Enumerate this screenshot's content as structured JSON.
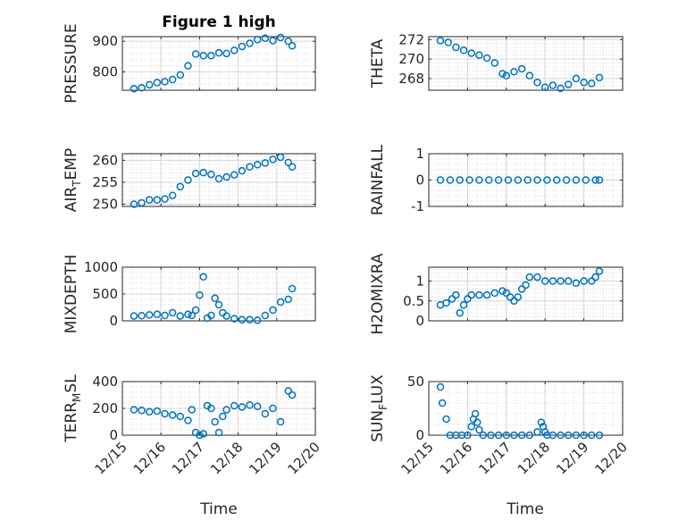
{
  "figure_title": "Figure 1 high",
  "x_ticks": [
    "12/15",
    "12/16",
    "12/17",
    "12/18",
    "12/19",
    "12/20"
  ],
  "x_label": "Time",
  "marker_color": "#0072BD",
  "chart_data": [
    {
      "type": "scatter",
      "name": "pressure",
      "ylabel": "PRESSURE",
      "title": "Figure 1 high",
      "ylim": [
        740,
        915
      ],
      "yticks": [
        "800",
        "900"
      ],
      "ytick_values": [
        800,
        900
      ],
      "x": [
        0.3,
        0.5,
        0.7,
        0.9,
        1.1,
        1.3,
        1.5,
        1.7,
        1.9,
        2.1,
        2.3,
        2.5,
        2.7,
        2.9,
        3.1,
        3.3,
        3.5,
        3.7,
        3.9,
        4.1,
        4.3,
        4.4
      ],
      "y": [
        745,
        748,
        758,
        765,
        768,
        775,
        790,
        820,
        858,
        853,
        853,
        862,
        860,
        870,
        883,
        893,
        905,
        910,
        902,
        912,
        900,
        885
      ]
    },
    {
      "type": "scatter",
      "name": "theta",
      "ylabel": "THETA",
      "ylim": [
        266.8,
        272.3
      ],
      "yticks": [
        "268",
        "270",
        "272"
      ],
      "ytick_values": [
        268,
        270,
        272
      ],
      "x": [
        0.3,
        0.5,
        0.7,
        0.9,
        1.1,
        1.3,
        1.5,
        1.7,
        1.9,
        2.0,
        2.2,
        2.4,
        2.6,
        2.8,
        3.0,
        3.2,
        3.4,
        3.6,
        3.8,
        4.0,
        4.2,
        4.4
      ],
      "y": [
        271.9,
        271.7,
        271.2,
        270.9,
        270.6,
        270.4,
        270.1,
        269.6,
        268.5,
        268.3,
        268.7,
        269.0,
        268.3,
        267.6,
        267.1,
        267.3,
        267.0,
        267.4,
        268.0,
        267.6,
        267.5,
        268.1
      ]
    },
    {
      "type": "scatter",
      "name": "air_temp",
      "ylabel": "AIR_TEMP",
      "ylim": [
        249.5,
        261.5
      ],
      "yticks": [
        "250",
        "255",
        "260"
      ],
      "ytick_values": [
        250,
        255,
        260
      ],
      "x": [
        0.3,
        0.5,
        0.7,
        0.9,
        1.1,
        1.3,
        1.5,
        1.7,
        1.9,
        2.1,
        2.3,
        2.5,
        2.7,
        2.9,
        3.1,
        3.3,
        3.5,
        3.7,
        3.9,
        4.1,
        4.3,
        4.4
      ],
      "y": [
        250.0,
        250.3,
        251.0,
        251.0,
        251.2,
        252.0,
        254.0,
        255.5,
        257.0,
        257.2,
        256.8,
        255.8,
        256.2,
        256.7,
        257.6,
        258.5,
        259.0,
        259.4,
        260.2,
        260.7,
        259.5,
        258.5
      ]
    },
    {
      "type": "scatter",
      "name": "rainfall",
      "ylabel": "RAINFALL",
      "ylim": [
        -1,
        1
      ],
      "yticks": [
        "-1",
        "0",
        "1"
      ],
      "ytick_values": [
        -1,
        0,
        1
      ],
      "x": [
        0.3,
        0.55,
        0.8,
        1.05,
        1.3,
        1.55,
        1.8,
        2.05,
        2.3,
        2.55,
        2.8,
        3.05,
        3.3,
        3.55,
        3.8,
        4.05,
        4.3,
        4.4
      ],
      "y": [
        0,
        0,
        0,
        0,
        0,
        0,
        0,
        0,
        0,
        0,
        0,
        0,
        0,
        0,
        0,
        0,
        0,
        0
      ]
    },
    {
      "type": "scatter",
      "name": "mixdepth",
      "ylabel": "MIXDEPTH",
      "ylim": [
        0,
        1000
      ],
      "yticks": [
        "0",
        "500",
        "1000"
      ],
      "ytick_values": [
        0,
        500,
        1000
      ],
      "x": [
        0.3,
        0.5,
        0.7,
        0.9,
        1.1,
        1.3,
        1.5,
        1.7,
        1.8,
        1.9,
        2.0,
        2.1,
        2.2,
        2.3,
        2.4,
        2.5,
        2.6,
        2.7,
        2.9,
        3.1,
        3.3,
        3.5,
        3.7,
        3.9,
        4.1,
        4.3,
        4.4
      ],
      "y": [
        90,
        95,
        110,
        120,
        100,
        150,
        90,
        120,
        100,
        200,
        480,
        820,
        50,
        100,
        420,
        300,
        150,
        90,
        40,
        20,
        20,
        10,
        100,
        200,
        350,
        400,
        600
      ]
    },
    {
      "type": "scatter",
      "name": "h2omixra",
      "ylabel": "H2OMIXRA",
      "ylim": [
        0,
        1.35
      ],
      "yticks": [
        "0",
        "0.5",
        "1"
      ],
      "ytick_values": [
        0,
        0.5,
        1
      ],
      "x": [
        0.3,
        0.45,
        0.6,
        0.7,
        0.8,
        0.9,
        1.0,
        1.1,
        1.3,
        1.5,
        1.7,
        1.9,
        2.0,
        2.1,
        2.2,
        2.3,
        2.4,
        2.5,
        2.6,
        2.8,
        3.0,
        3.2,
        3.4,
        3.6,
        3.8,
        4.0,
        4.2,
        4.3,
        4.4
      ],
      "y": [
        0.4,
        0.45,
        0.55,
        0.65,
        0.2,
        0.4,
        0.55,
        0.65,
        0.65,
        0.65,
        0.7,
        0.75,
        0.7,
        0.6,
        0.5,
        0.6,
        0.8,
        0.9,
        1.1,
        1.1,
        1.0,
        1.0,
        1.0,
        1.0,
        0.95,
        1.0,
        1.0,
        1.1,
        1.25
      ]
    },
    {
      "type": "scatter",
      "name": "terr_msl",
      "ylabel": "TERR_MSL",
      "ylim": [
        0,
        400
      ],
      "yticks": [
        "0",
        "200",
        "400"
      ],
      "ytick_values": [
        0,
        200,
        400
      ],
      "x": [
        0.3,
        0.5,
        0.7,
        0.9,
        1.1,
        1.3,
        1.5,
        1.7,
        1.8,
        1.9,
        2.0,
        2.1,
        2.2,
        2.3,
        2.4,
        2.5,
        2.6,
        2.7,
        2.9,
        3.1,
        3.3,
        3.5,
        3.7,
        3.9,
        4.1,
        4.3,
        4.4
      ],
      "y": [
        190,
        185,
        175,
        180,
        160,
        150,
        140,
        110,
        190,
        20,
        0,
        10,
        220,
        200,
        100,
        20,
        140,
        190,
        220,
        210,
        225,
        215,
        160,
        200,
        100,
        330,
        300
      ]
    },
    {
      "type": "scatter",
      "name": "sun_flux",
      "ylabel": "SUN_FLUX",
      "ylim": [
        0,
        50
      ],
      "yticks": [
        "0",
        "50"
      ],
      "ytick_values": [
        0,
        50
      ],
      "x": [
        0.3,
        0.35,
        0.45,
        0.55,
        0.7,
        0.85,
        1.0,
        1.1,
        1.15,
        1.2,
        1.25,
        1.3,
        1.4,
        1.6,
        1.8,
        2.0,
        2.2,
        2.4,
        2.6,
        2.8,
        2.9,
        2.95,
        3.0,
        3.05,
        3.2,
        3.4,
        3.6,
        3.8,
        4.0,
        4.2,
        4.4
      ],
      "y": [
        45,
        30,
        15,
        0,
        0,
        0,
        0,
        8,
        15,
        20,
        12,
        5,
        0,
        0,
        0,
        0,
        0,
        0,
        0,
        3,
        12,
        8,
        3,
        0,
        0,
        0,
        0,
        0,
        0,
        0,
        0
      ]
    }
  ]
}
